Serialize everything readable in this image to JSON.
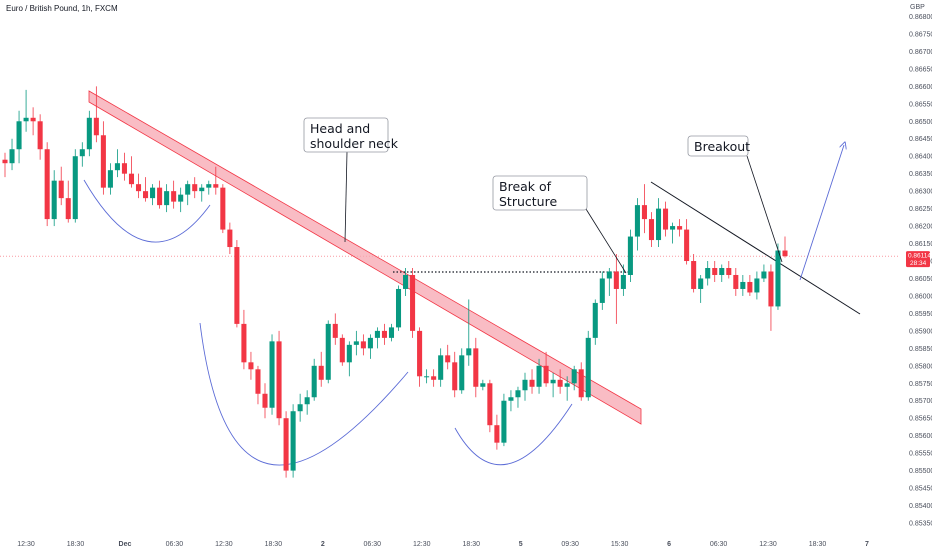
{
  "chart_data": {
    "type": "candlestick",
    "title": "Euro / British Pound, 1h, FXCM",
    "currency": "GBP",
    "ylim": [
      0.8533,
      0.8683
    ],
    "y_ticks": [
      "0.86800",
      "0.86750",
      "0.86700",
      "0.86650",
      "0.86600",
      "0.86550",
      "0.86500",
      "0.86450",
      "0.86400",
      "0.86350",
      "0.86300",
      "0.86250",
      "0.86200",
      "0.86150",
      "0.86100",
      "0.86050",
      "0.86000",
      "0.85950",
      "0.85900",
      "0.85850",
      "0.85800",
      "0.85750",
      "0.85700",
      "0.85650",
      "0.85600",
      "0.85550",
      "0.85500",
      "0.85450",
      "0.85400",
      "0.85350"
    ],
    "x_ticks": [
      "12:30",
      "18:30",
      "Dec",
      "06:30",
      "12:30",
      "18:30",
      "2",
      "06:30",
      "12:30",
      "18:30",
      "5",
      "09:30",
      "15:30",
      "6",
      "06:30",
      "12:30",
      "18:30",
      "7"
    ],
    "last_price": "0.86114",
    "countdown": "28:34",
    "colors": {
      "up": "#089981",
      "down": "#f23645",
      "channel": "#f7a6b0",
      "annotation": "#131722",
      "curve": "#5b6bd6"
    },
    "annotations": [
      {
        "id": "neck",
        "text": [
          "Head and",
          "shoulder neck"
        ]
      },
      {
        "id": "bos",
        "text": [
          "Break of",
          "Structure"
        ]
      },
      {
        "id": "breakout",
        "text": [
          "Breakout"
        ]
      }
    ],
    "candles": [
      {
        "o": 0.8639,
        "h": 0.8641,
        "l": 0.8634,
        "c": 0.8638
      },
      {
        "o": 0.8638,
        "h": 0.8645,
        "l": 0.8636,
        "c": 0.8642
      },
      {
        "o": 0.8642,
        "h": 0.8653,
        "l": 0.8638,
        "c": 0.865
      },
      {
        "o": 0.865,
        "h": 0.8659,
        "l": 0.8647,
        "c": 0.8651
      },
      {
        "o": 0.8651,
        "h": 0.8654,
        "l": 0.8646,
        "c": 0.865
      },
      {
        "o": 0.865,
        "h": 0.8652,
        "l": 0.8639,
        "c": 0.8642
      },
      {
        "o": 0.8642,
        "h": 0.8644,
        "l": 0.862,
        "c": 0.8622
      },
      {
        "o": 0.8622,
        "h": 0.8636,
        "l": 0.862,
        "c": 0.8633
      },
      {
        "o": 0.8633,
        "h": 0.8637,
        "l": 0.8626,
        "c": 0.8628
      },
      {
        "o": 0.8628,
        "h": 0.8633,
        "l": 0.8621,
        "c": 0.8622
      },
      {
        "o": 0.8622,
        "h": 0.8642,
        "l": 0.8621,
        "c": 0.864
      },
      {
        "o": 0.864,
        "h": 0.8644,
        "l": 0.8637,
        "c": 0.8642
      },
      {
        "o": 0.8642,
        "h": 0.8653,
        "l": 0.864,
        "c": 0.8651
      },
      {
        "o": 0.8651,
        "h": 0.866,
        "l": 0.8644,
        "c": 0.8646
      },
      {
        "o": 0.8646,
        "h": 0.865,
        "l": 0.8629,
        "c": 0.8631
      },
      {
        "o": 0.8631,
        "h": 0.8638,
        "l": 0.8629,
        "c": 0.8636
      },
      {
        "o": 0.8636,
        "h": 0.8642,
        "l": 0.8634,
        "c": 0.8638
      },
      {
        "o": 0.8638,
        "h": 0.8641,
        "l": 0.8633,
        "c": 0.8635
      },
      {
        "o": 0.8635,
        "h": 0.864,
        "l": 0.8631,
        "c": 0.8632
      },
      {
        "o": 0.8632,
        "h": 0.8635,
        "l": 0.8628,
        "c": 0.863
      },
      {
        "o": 0.863,
        "h": 0.8634,
        "l": 0.8627,
        "c": 0.8628
      },
      {
        "o": 0.8628,
        "h": 0.8632,
        "l": 0.8626,
        "c": 0.8631
      },
      {
        "o": 0.8631,
        "h": 0.8633,
        "l": 0.8625,
        "c": 0.8626
      },
      {
        "o": 0.8626,
        "h": 0.8632,
        "l": 0.8624,
        "c": 0.863
      },
      {
        "o": 0.863,
        "h": 0.8633,
        "l": 0.8625,
        "c": 0.8627
      },
      {
        "o": 0.8627,
        "h": 0.8631,
        "l": 0.8624,
        "c": 0.8629
      },
      {
        "o": 0.8629,
        "h": 0.8633,
        "l": 0.8626,
        "c": 0.8632
      },
      {
        "o": 0.8632,
        "h": 0.8634,
        "l": 0.8628,
        "c": 0.863
      },
      {
        "o": 0.863,
        "h": 0.8632,
        "l": 0.8627,
        "c": 0.8631
      },
      {
        "o": 0.8631,
        "h": 0.8633,
        "l": 0.8629,
        "c": 0.8632
      },
      {
        "o": 0.8632,
        "h": 0.8637,
        "l": 0.8629,
        "c": 0.8631
      },
      {
        "o": 0.8631,
        "h": 0.8632,
        "l": 0.8618,
        "c": 0.8619
      },
      {
        "o": 0.8619,
        "h": 0.8621,
        "l": 0.8612,
        "c": 0.8614
      },
      {
        "o": 0.8614,
        "h": 0.8616,
        "l": 0.8591,
        "c": 0.8592
      },
      {
        "o": 0.8592,
        "h": 0.8596,
        "l": 0.8579,
        "c": 0.8581
      },
      {
        "o": 0.8581,
        "h": 0.8584,
        "l": 0.8576,
        "c": 0.8579
      },
      {
        "o": 0.8579,
        "h": 0.858,
        "l": 0.8569,
        "c": 0.8572
      },
      {
        "o": 0.8572,
        "h": 0.8575,
        "l": 0.8565,
        "c": 0.8568
      },
      {
        "o": 0.8568,
        "h": 0.8589,
        "l": 0.8566,
        "c": 0.8587
      },
      {
        "o": 0.8587,
        "h": 0.859,
        "l": 0.8563,
        "c": 0.8565
      },
      {
        "o": 0.8565,
        "h": 0.8567,
        "l": 0.8548,
        "c": 0.855
      },
      {
        "o": 0.855,
        "h": 0.8569,
        "l": 0.8548,
        "c": 0.8567
      },
      {
        "o": 0.8567,
        "h": 0.8572,
        "l": 0.8564,
        "c": 0.8569
      },
      {
        "o": 0.8569,
        "h": 0.8573,
        "l": 0.8566,
        "c": 0.8571
      },
      {
        "o": 0.8571,
        "h": 0.8582,
        "l": 0.857,
        "c": 0.858
      },
      {
        "o": 0.858,
        "h": 0.8584,
        "l": 0.8574,
        "c": 0.8576
      },
      {
        "o": 0.8576,
        "h": 0.8593,
        "l": 0.8575,
        "c": 0.8592
      },
      {
        "o": 0.8592,
        "h": 0.8595,
        "l": 0.8586,
        "c": 0.8588
      },
      {
        "o": 0.8588,
        "h": 0.8589,
        "l": 0.858,
        "c": 0.8581
      },
      {
        "o": 0.8581,
        "h": 0.8587,
        "l": 0.8577,
        "c": 0.8586
      },
      {
        "o": 0.8586,
        "h": 0.859,
        "l": 0.8583,
        "c": 0.8587
      },
      {
        "o": 0.8587,
        "h": 0.8589,
        "l": 0.8583,
        "c": 0.8585
      },
      {
        "o": 0.8585,
        "h": 0.8589,
        "l": 0.8582,
        "c": 0.8588
      },
      {
        "o": 0.8588,
        "h": 0.8591,
        "l": 0.8585,
        "c": 0.859
      },
      {
        "o": 0.859,
        "h": 0.8592,
        "l": 0.8586,
        "c": 0.8588
      },
      {
        "o": 0.8588,
        "h": 0.8592,
        "l": 0.8587,
        "c": 0.8591
      },
      {
        "o": 0.8591,
        "h": 0.8603,
        "l": 0.859,
        "c": 0.8602
      },
      {
        "o": 0.8602,
        "h": 0.8608,
        "l": 0.86,
        "c": 0.8606
      },
      {
        "o": 0.8606,
        "h": 0.8608,
        "l": 0.8588,
        "c": 0.859
      },
      {
        "o": 0.859,
        "h": 0.8591,
        "l": 0.8574,
        "c": 0.8577
      },
      {
        "o": 0.8577,
        "h": 0.8579,
        "l": 0.8575,
        "c": 0.8577
      },
      {
        "o": 0.8577,
        "h": 0.8579,
        "l": 0.8574,
        "c": 0.8576
      },
      {
        "o": 0.8576,
        "h": 0.8585,
        "l": 0.8574,
        "c": 0.8583
      },
      {
        "o": 0.8583,
        "h": 0.8586,
        "l": 0.8579,
        "c": 0.8581
      },
      {
        "o": 0.8581,
        "h": 0.8584,
        "l": 0.8571,
        "c": 0.8573
      },
      {
        "o": 0.8573,
        "h": 0.8585,
        "l": 0.8572,
        "c": 0.8583
      },
      {
        "o": 0.8583,
        "h": 0.8599,
        "l": 0.858,
        "c": 0.8585
      },
      {
        "o": 0.8585,
        "h": 0.8588,
        "l": 0.8571,
        "c": 0.8574
      },
      {
        "o": 0.8574,
        "h": 0.8576,
        "l": 0.8573,
        "c": 0.8575
      },
      {
        "o": 0.8575,
        "h": 0.8576,
        "l": 0.8561,
        "c": 0.8563
      },
      {
        "o": 0.8563,
        "h": 0.8566,
        "l": 0.8556,
        "c": 0.8558
      },
      {
        "o": 0.8558,
        "h": 0.8572,
        "l": 0.8557,
        "c": 0.857
      },
      {
        "o": 0.857,
        "h": 0.8573,
        "l": 0.8567,
        "c": 0.8571
      },
      {
        "o": 0.8571,
        "h": 0.8574,
        "l": 0.8568,
        "c": 0.8573
      },
      {
        "o": 0.8573,
        "h": 0.8578,
        "l": 0.857,
        "c": 0.8576
      },
      {
        "o": 0.8576,
        "h": 0.8579,
        "l": 0.8572,
        "c": 0.8574
      },
      {
        "o": 0.8574,
        "h": 0.8582,
        "l": 0.8572,
        "c": 0.858
      },
      {
        "o": 0.858,
        "h": 0.8584,
        "l": 0.8574,
        "c": 0.8575
      },
      {
        "o": 0.8575,
        "h": 0.8578,
        "l": 0.8571,
        "c": 0.8576
      },
      {
        "o": 0.8576,
        "h": 0.8579,
        "l": 0.8572,
        "c": 0.8574
      },
      {
        "o": 0.8574,
        "h": 0.8577,
        "l": 0.857,
        "c": 0.8575
      },
      {
        "o": 0.8575,
        "h": 0.858,
        "l": 0.8573,
        "c": 0.8579
      },
      {
        "o": 0.8579,
        "h": 0.8581,
        "l": 0.857,
        "c": 0.8571
      },
      {
        "o": 0.8571,
        "h": 0.859,
        "l": 0.857,
        "c": 0.8588
      },
      {
        "o": 0.8588,
        "h": 0.8599,
        "l": 0.8586,
        "c": 0.8598
      },
      {
        "o": 0.8598,
        "h": 0.8607,
        "l": 0.8596,
        "c": 0.8605
      },
      {
        "o": 0.8605,
        "h": 0.8608,
        "l": 0.86,
        "c": 0.8607
      },
      {
        "o": 0.8607,
        "h": 0.8612,
        "l": 0.8592,
        "c": 0.8602
      },
      {
        "o": 0.8602,
        "h": 0.8609,
        "l": 0.86,
        "c": 0.8606
      },
      {
        "o": 0.8606,
        "h": 0.8619,
        "l": 0.8604,
        "c": 0.8617
      },
      {
        "o": 0.8617,
        "h": 0.8628,
        "l": 0.8613,
        "c": 0.8626
      },
      {
        "o": 0.8626,
        "h": 0.8632,
        "l": 0.8618,
        "c": 0.8622
      },
      {
        "o": 0.8622,
        "h": 0.8624,
        "l": 0.8614,
        "c": 0.8616
      },
      {
        "o": 0.8616,
        "h": 0.8628,
        "l": 0.8614,
        "c": 0.8625
      },
      {
        "o": 0.8625,
        "h": 0.8627,
        "l": 0.8617,
        "c": 0.8619
      },
      {
        "o": 0.8619,
        "h": 0.8621,
        "l": 0.8615,
        "c": 0.862
      },
      {
        "o": 0.862,
        "h": 0.8622,
        "l": 0.8617,
        "c": 0.8619
      },
      {
        "o": 0.8619,
        "h": 0.8622,
        "l": 0.8609,
        "c": 0.861
      },
      {
        "o": 0.861,
        "h": 0.8612,
        "l": 0.8601,
        "c": 0.8602
      },
      {
        "o": 0.8602,
        "h": 0.8606,
        "l": 0.8598,
        "c": 0.8605
      },
      {
        "o": 0.8605,
        "h": 0.861,
        "l": 0.8603,
        "c": 0.8608
      },
      {
        "o": 0.8608,
        "h": 0.861,
        "l": 0.8604,
        "c": 0.8606
      },
      {
        "o": 0.8606,
        "h": 0.8609,
        "l": 0.8604,
        "c": 0.8608
      },
      {
        "o": 0.8608,
        "h": 0.861,
        "l": 0.8605,
        "c": 0.8606
      },
      {
        "o": 0.8606,
        "h": 0.8608,
        "l": 0.86,
        "c": 0.8602
      },
      {
        "o": 0.8602,
        "h": 0.8606,
        "l": 0.86,
        "c": 0.8604
      },
      {
        "o": 0.8604,
        "h": 0.8606,
        "l": 0.86,
        "c": 0.8601
      },
      {
        "o": 0.8601,
        "h": 0.8607,
        "l": 0.8599,
        "c": 0.8605
      },
      {
        "o": 0.8605,
        "h": 0.8609,
        "l": 0.8604,
        "c": 0.8607
      },
      {
        "o": 0.8607,
        "h": 0.8609,
        "l": 0.859,
        "c": 0.8597
      },
      {
        "o": 0.8597,
        "h": 0.8615,
        "l": 0.8596,
        "c": 0.8613
      },
      {
        "o": 0.8613,
        "h": 0.8617,
        "l": 0.8611,
        "c": 0.86114
      }
    ]
  }
}
